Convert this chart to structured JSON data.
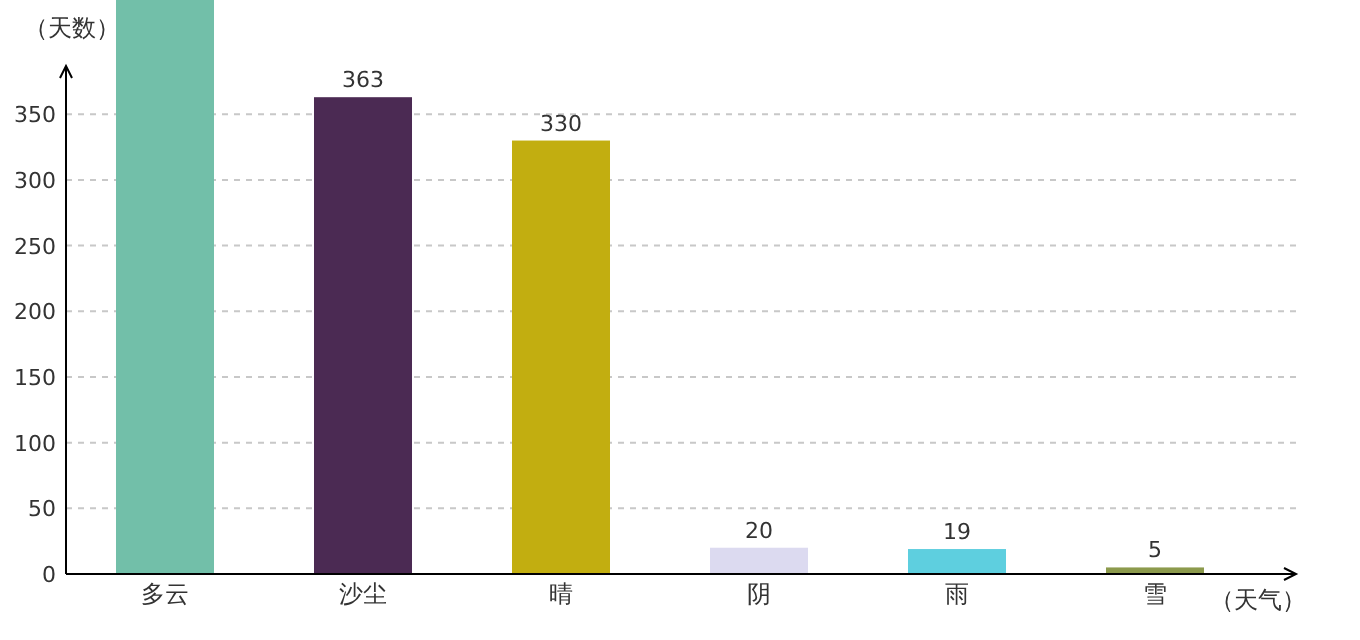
{
  "chart_data": {
    "type": "bar",
    "xlabel": "（天气）",
    "ylabel": "（天数）",
    "categories": [
      "多云",
      "沙尘",
      "晴",
      "阴",
      "雨",
      "雪"
    ],
    "values": [
      437,
      363,
      330,
      20,
      19,
      5
    ],
    "value_labels": [
      null,
      "363",
      "330",
      "20",
      "19",
      "5"
    ],
    "colors": [
      "#72bfa9",
      "#4b2a53",
      "#c2ae10",
      "#dcdaf0",
      "#5ecfdf",
      "#8c9a4c"
    ],
    "ylim": [
      0,
      437
    ],
    "yticks": [
      0,
      50,
      100,
      150,
      200,
      250,
      300,
      350
    ],
    "grid": "y"
  }
}
